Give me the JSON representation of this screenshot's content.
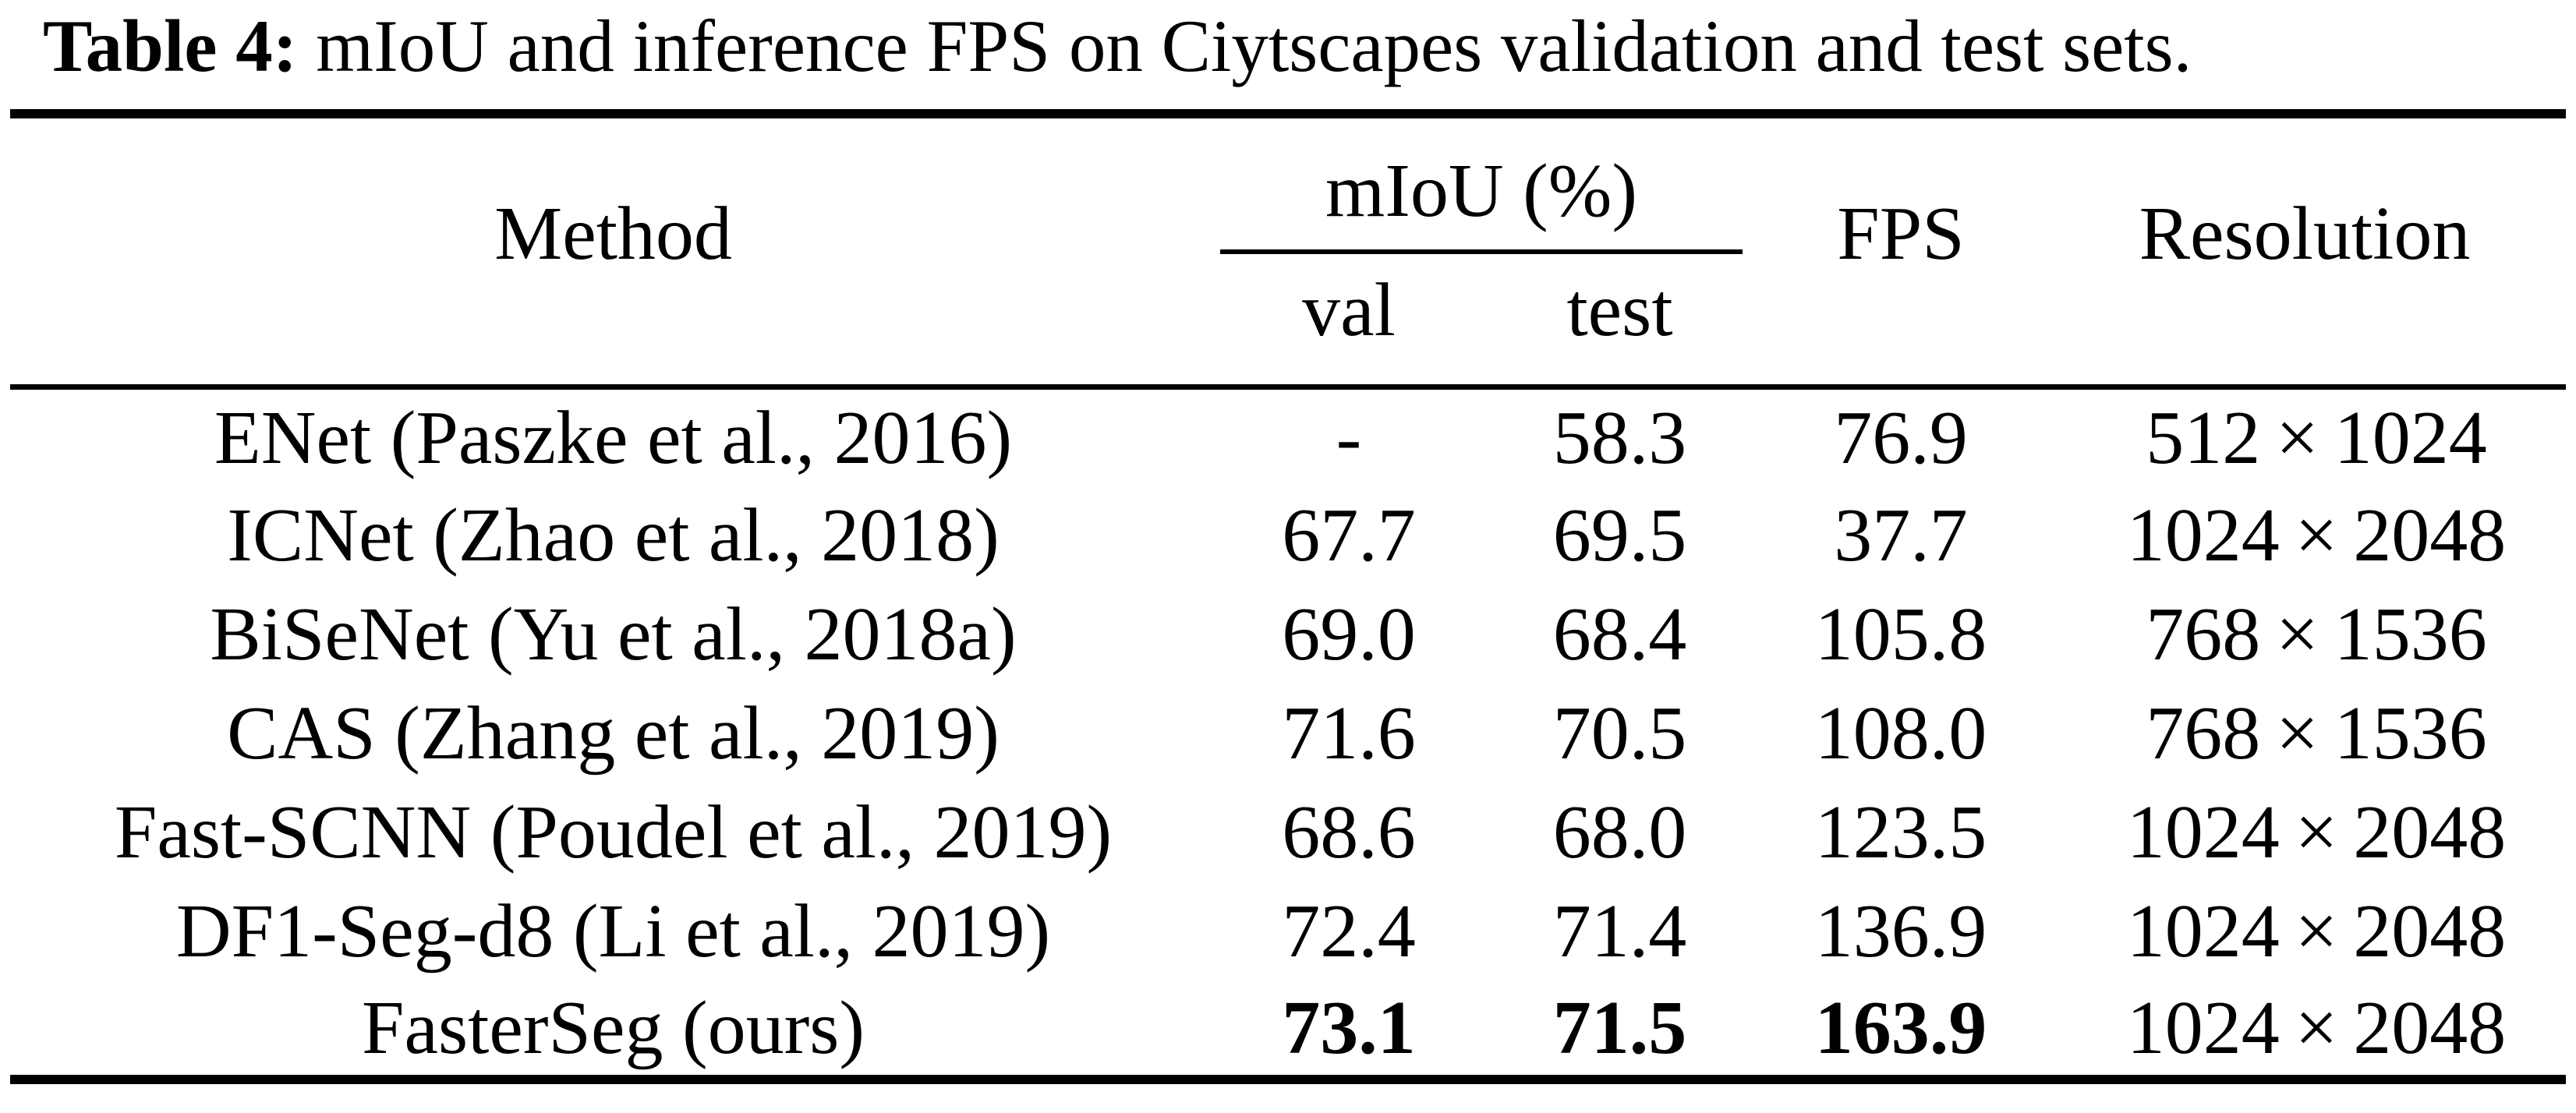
{
  "caption": {
    "label": "Table 4:",
    "text": "mIoU and inference FPS on Ciytscapes validation and test sets."
  },
  "table": {
    "headers": {
      "method": "Method",
      "miou_group": "mIoU (%)",
      "val": "val",
      "test": "test",
      "fps": "FPS",
      "resolution": "Resolution"
    },
    "rows": [
      {
        "method": "ENet (Paszke et al., 2016)",
        "val": "-",
        "test": "58.3",
        "fps": "76.9",
        "resolution": "512×1024",
        "best": false
      },
      {
        "method": "ICNet (Zhao et al., 2018)",
        "val": "67.7",
        "test": "69.5",
        "fps": "37.7",
        "resolution": "1024×2048",
        "best": false
      },
      {
        "method": "BiSeNet (Yu et al., 2018a)",
        "val": "69.0",
        "test": "68.4",
        "fps": "105.8",
        "resolution": "768×1536",
        "best": false
      },
      {
        "method": "CAS (Zhang et al., 2019)",
        "val": "71.6",
        "test": "70.5",
        "fps": "108.0",
        "resolution": "768×1536",
        "best": false
      },
      {
        "method": "Fast-SCNN (Poudel et al., 2019)",
        "val": "68.6",
        "test": "68.0",
        "fps": "123.5",
        "resolution": "1024×2048",
        "best": false
      },
      {
        "method": "DF1-Seg-d8 (Li et al., 2019)",
        "val": "72.4",
        "test": "71.4",
        "fps": "136.9",
        "resolution": "1024×2048",
        "best": false
      },
      {
        "method": "FasterSeg (ours)",
        "val": "73.1",
        "test": "71.5",
        "fps": "163.9",
        "resolution": "1024×2048",
        "best": true
      }
    ]
  },
  "colors": {
    "text": "#000000",
    "background": "#ffffff",
    "rule": "#000000"
  }
}
